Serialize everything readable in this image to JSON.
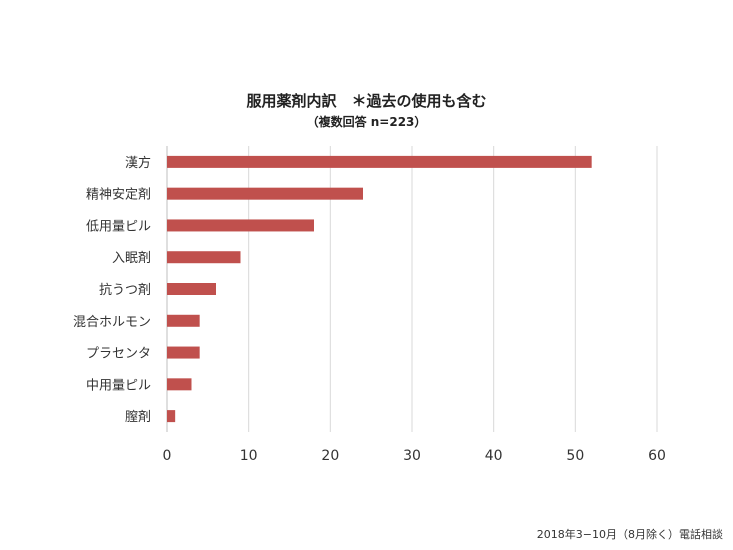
{
  "chart_data": {
    "type": "bar",
    "orientation": "horizontal",
    "title": "服用薬剤内訳　＊過去の使用も含む",
    "subtitle": "（複数回答 n=223）",
    "categories": [
      "漢方",
      "精神安定剤",
      "低用量ピル",
      "入眠剤",
      "抗うつ剤",
      "混合ホルモン",
      "プラセンタ",
      "中用量ピル",
      "膣剤"
    ],
    "values": [
      52,
      24,
      18,
      9,
      6,
      4,
      4,
      3,
      1
    ],
    "xlim": [
      0,
      60
    ],
    "xticks": [
      0,
      10,
      20,
      30,
      40,
      50,
      60
    ],
    "grid": true,
    "bar_color": "#c0504d"
  },
  "source": "2018年3−10月（8月除く）電話相談"
}
